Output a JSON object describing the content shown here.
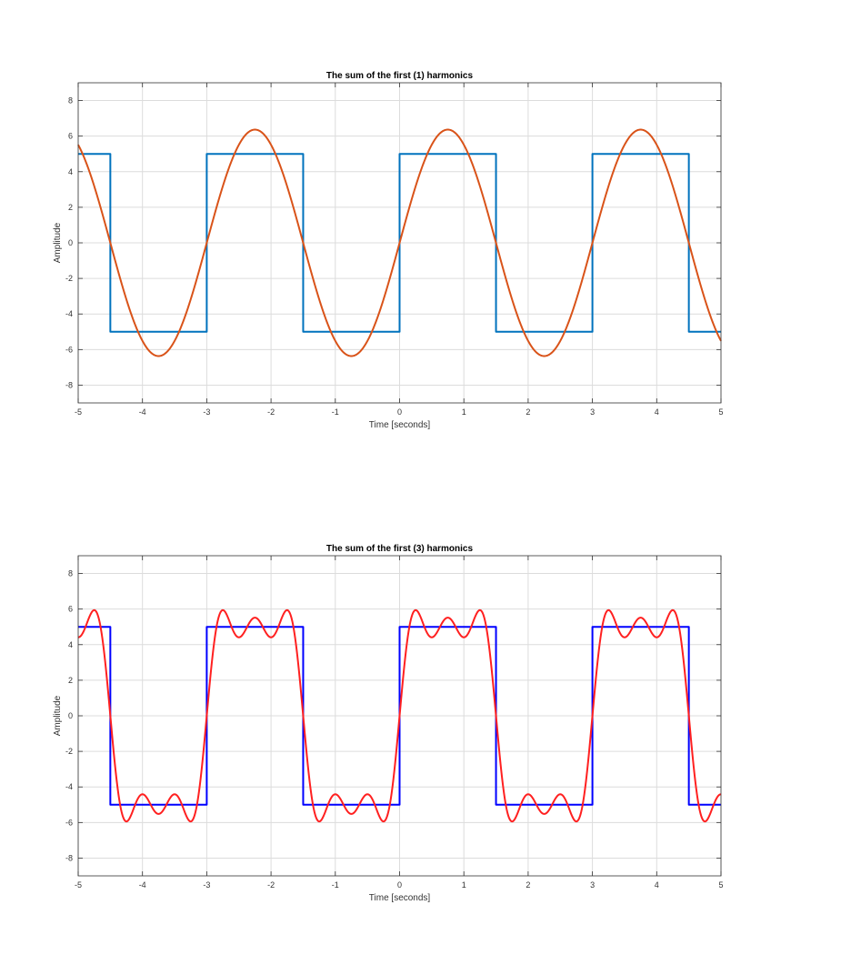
{
  "chart_data": [
    {
      "type": "line",
      "title": "The sum of the first (1) harmonics",
      "xlabel": "Time [seconds]",
      "ylabel": "Amplitude",
      "xlim": [
        -5,
        5
      ],
      "ylim": [
        -9,
        9
      ],
      "xticks": [
        -5,
        -4,
        -3,
        -2,
        -1,
        0,
        1,
        2,
        3,
        4,
        5
      ],
      "yticks": [
        -8,
        -6,
        -4,
        -2,
        0,
        2,
        4,
        6,
        8
      ],
      "grid": true,
      "series": [
        {
          "kind": "square",
          "amplitude": 5,
          "period": 3,
          "color": "#0072BD",
          "x": [
            -5,
            -4.5,
            -4.5,
            -3,
            -3,
            -1.5,
            -1.5,
            0,
            0,
            1.5,
            1.5,
            3,
            3,
            4.5,
            4.5,
            5
          ],
          "y": [
            5,
            5,
            -5,
            -5,
            5,
            5,
            -5,
            -5,
            5,
            5,
            -5,
            -5,
            5,
            5,
            -5,
            -5
          ]
        },
        {
          "kind": "fourier_sum",
          "harmonics": 1,
          "amplitude": 5,
          "period": 3,
          "color": "#D95319",
          "peak": 6.37
        }
      ]
    },
    {
      "type": "line",
      "title": "The sum of the first (3) harmonics",
      "xlabel": "Time [seconds]",
      "ylabel": "Amplitude",
      "xlim": [
        -5,
        5
      ],
      "ylim": [
        -9,
        9
      ],
      "xticks": [
        -5,
        -4,
        -3,
        -2,
        -1,
        0,
        1,
        2,
        3,
        4,
        5
      ],
      "yticks": [
        -8,
        -6,
        -4,
        -2,
        0,
        2,
        4,
        6,
        8
      ],
      "grid": true,
      "series": [
        {
          "kind": "square",
          "amplitude": 5,
          "period": 3,
          "color": "#0000FF",
          "x": [
            -5,
            -4.5,
            -4.5,
            -3,
            -3,
            -1.5,
            -1.5,
            0,
            0,
            1.5,
            1.5,
            3,
            3,
            4.5,
            4.5,
            5
          ],
          "y": [
            5,
            5,
            -5,
            -5,
            5,
            5,
            -5,
            -5,
            5,
            5,
            -5,
            -5,
            5,
            5,
            -5,
            -5
          ]
        },
        {
          "kind": "fourier_sum",
          "harmonics": 3,
          "amplitude": 5,
          "period": 3,
          "color": "#FF2020",
          "peak": 6.0
        }
      ]
    }
  ]
}
